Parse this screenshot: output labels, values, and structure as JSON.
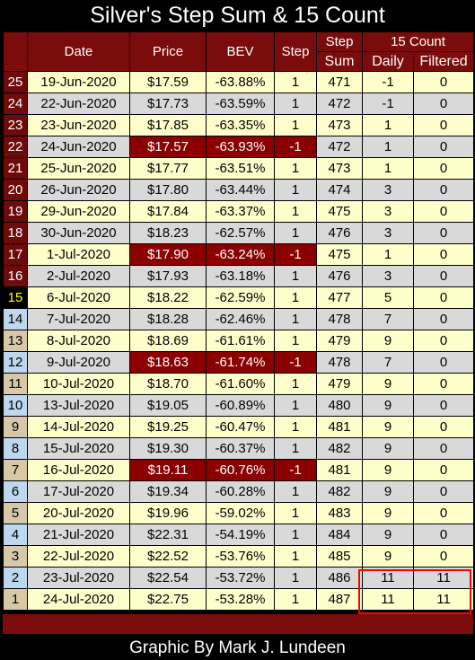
{
  "title": "Silver's Step Sum & 15 Count",
  "headers": {
    "date": "Date",
    "price": "Price",
    "bev": "BEV",
    "step": "Step",
    "step_sum_top": "Step",
    "step_sum_bottom": "Sum",
    "count_group": "15 Count",
    "daily": "Daily",
    "filtered": "Filtered"
  },
  "rows": [
    {
      "n": "25",
      "date": "19-Jun-2020",
      "price": "$17.59",
      "bev": "-63.88%",
      "step": "1",
      "sum": "471",
      "daily": "-1",
      "filtered": "0"
    },
    {
      "n": "24",
      "date": "22-Jun-2020",
      "price": "$17.73",
      "bev": "-63.59%",
      "step": "1",
      "sum": "472",
      "daily": "-1",
      "filtered": "0"
    },
    {
      "n": "23",
      "date": "23-Jun-2020",
      "price": "$17.85",
      "bev": "-63.35%",
      "step": "1",
      "sum": "473",
      "daily": "1",
      "filtered": "0"
    },
    {
      "n": "22",
      "date": "24-Jun-2020",
      "price": "$17.57",
      "bev": "-63.93%",
      "step": "-1",
      "sum": "472",
      "daily": "1",
      "filtered": "0"
    },
    {
      "n": "21",
      "date": "25-Jun-2020",
      "price": "$17.77",
      "bev": "-63.51%",
      "step": "1",
      "sum": "473",
      "daily": "1",
      "filtered": "0"
    },
    {
      "n": "20",
      "date": "26-Jun-2020",
      "price": "$17.80",
      "bev": "-63.44%",
      "step": "1",
      "sum": "474",
      "daily": "3",
      "filtered": "0"
    },
    {
      "n": "19",
      "date": "29-Jun-2020",
      "price": "$17.84",
      "bev": "-63.37%",
      "step": "1",
      "sum": "475",
      "daily": "3",
      "filtered": "0"
    },
    {
      "n": "18",
      "date": "30-Jun-2020",
      "price": "$18.23",
      "bev": "-62.57%",
      "step": "1",
      "sum": "476",
      "daily": "3",
      "filtered": "0"
    },
    {
      "n": "17",
      "date": "1-Jul-2020",
      "price": "$17.90",
      "bev": "-63.24%",
      "step": "-1",
      "sum": "475",
      "daily": "1",
      "filtered": "0"
    },
    {
      "n": "16",
      "date": "2-Jul-2020",
      "price": "$17.93",
      "bev": "-63.18%",
      "step": "1",
      "sum": "476",
      "daily": "3",
      "filtered": "0"
    },
    {
      "n": "15",
      "date": "6-Jul-2020",
      "price": "$18.22",
      "bev": "-62.59%",
      "step": "1",
      "sum": "477",
      "daily": "5",
      "filtered": "0"
    },
    {
      "n": "14",
      "date": "7-Jul-2020",
      "price": "$18.28",
      "bev": "-62.46%",
      "step": "1",
      "sum": "478",
      "daily": "7",
      "filtered": "0"
    },
    {
      "n": "13",
      "date": "8-Jul-2020",
      "price": "$18.69",
      "bev": "-61.61%",
      "step": "1",
      "sum": "479",
      "daily": "9",
      "filtered": "0"
    },
    {
      "n": "12",
      "date": "9-Jul-2020",
      "price": "$18.63",
      "bev": "-61.74%",
      "step": "-1",
      "sum": "478",
      "daily": "7",
      "filtered": "0"
    },
    {
      "n": "11",
      "date": "10-Jul-2020",
      "price": "$18.70",
      "bev": "-61.60%",
      "step": "1",
      "sum": "479",
      "daily": "9",
      "filtered": "0"
    },
    {
      "n": "10",
      "date": "13-Jul-2020",
      "price": "$19.05",
      "bev": "-60.89%",
      "step": "1",
      "sum": "480",
      "daily": "9",
      "filtered": "0"
    },
    {
      "n": "9",
      "date": "14-Jul-2020",
      "price": "$19.25",
      "bev": "-60.47%",
      "step": "1",
      "sum": "481",
      "daily": "9",
      "filtered": "0"
    },
    {
      "n": "8",
      "date": "15-Jul-2020",
      "price": "$19.30",
      "bev": "-60.37%",
      "step": "1",
      "sum": "482",
      "daily": "9",
      "filtered": "0"
    },
    {
      "n": "7",
      "date": "16-Jul-2020",
      "price": "$19.11",
      "bev": "-60.76%",
      "step": "-1",
      "sum": "481",
      "daily": "9",
      "filtered": "0"
    },
    {
      "n": "6",
      "date": "17-Jul-2020",
      "price": "$19.34",
      "bev": "-60.28%",
      "step": "1",
      "sum": "482",
      "daily": "9",
      "filtered": "0"
    },
    {
      "n": "5",
      "date": "20-Jul-2020",
      "price": "$19.96",
      "bev": "-59.02%",
      "step": "1",
      "sum": "483",
      "daily": "9",
      "filtered": "0"
    },
    {
      "n": "4",
      "date": "21-Jul-2020",
      "price": "$22.31",
      "bev": "-54.19%",
      "step": "1",
      "sum": "484",
      "daily": "9",
      "filtered": "0"
    },
    {
      "n": "3",
      "date": "22-Jul-2020",
      "price": "$22.52",
      "bev": "-53.76%",
      "step": "1",
      "sum": "485",
      "daily": "9",
      "filtered": "0"
    },
    {
      "n": "2",
      "date": "23-Jul-2020",
      "price": "$22.54",
      "bev": "-53.72%",
      "step": "1",
      "sum": "486",
      "daily": "11",
      "filtered": "11"
    },
    {
      "n": "1",
      "date": "24-Jul-2020",
      "price": "$22.75",
      "bev": "-53.28%",
      "step": "1",
      "sum": "487",
      "daily": "11",
      "filtered": "11"
    }
  ],
  "colors": {
    "header_bg": "#7a0c0c",
    "down_day": "#8b0000",
    "row_odd": "#ffffcc",
    "row_even": "#d9d9d9",
    "highlight_box": "#ff0000"
  },
  "footer": "Graphic By Mark J. Lundeen"
}
